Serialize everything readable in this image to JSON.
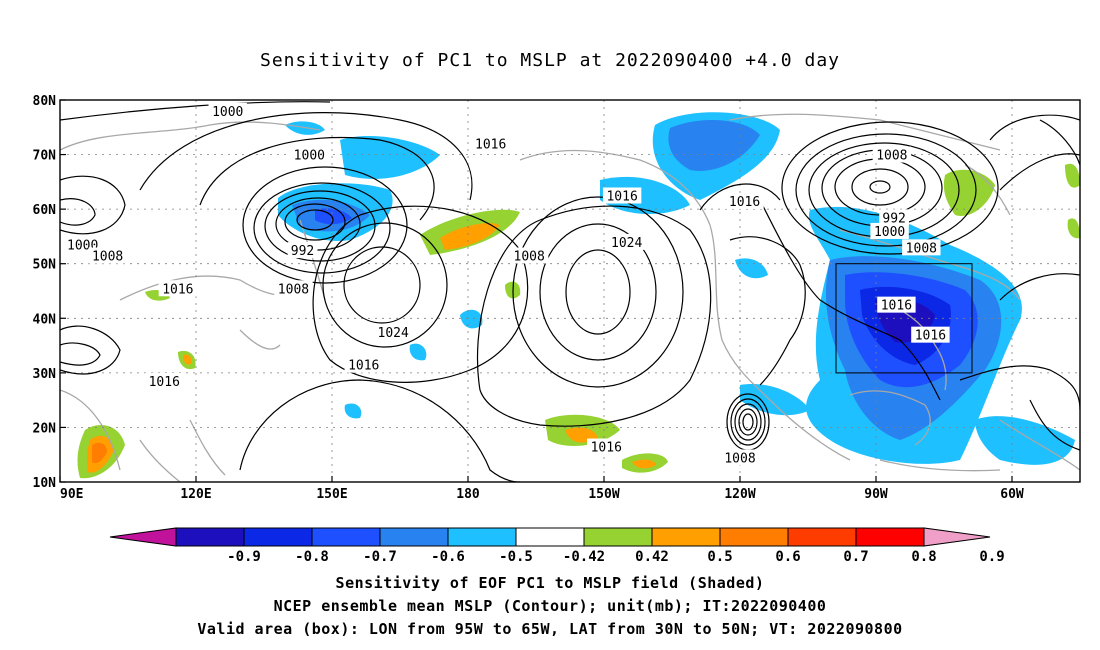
{
  "title": "Sensitivity of PC1 to MSLP at 2022090400 +4.0 day",
  "lat_labels": [
    "80N",
    "70N",
    "60N",
    "50N",
    "40N",
    "30N",
    "20N",
    "10N"
  ],
  "lon_labels": [
    "90E",
    "120E",
    "150E",
    "180",
    "150W",
    "120W",
    "90W",
    "60W"
  ],
  "map_extent": {
    "lon_min": 90,
    "lon_max": 315,
    "lat_min": 10,
    "lat_max": 80
  },
  "valid_box": {
    "lon": [
      265,
      295
    ],
    "lat": [
      30,
      50
    ]
  },
  "contour_labels": [
    {
      "text": "1000",
      "lon": 127,
      "lat": 78
    },
    {
      "text": "1000",
      "lat": 70,
      "lon": 145
    },
    {
      "text": "1016",
      "lat": 72,
      "lon": 185
    },
    {
      "text": "1000",
      "lat": 53.5,
      "lon": 95
    },
    {
      "text": "1008",
      "lat": 51.5,
      "lon": 100.5
    },
    {
      "text": "1016",
      "lat": 45.5,
      "lon": 116
    },
    {
      "text": "992",
      "lat": 52.5,
      "lon": 143.5
    },
    {
      "text": "1008",
      "lat": 45.5,
      "lon": 141.5
    },
    {
      "text": "1024",
      "lat": 37.5,
      "lon": 163.5
    },
    {
      "text": "1008",
      "lat": 51.5,
      "lon": 193.5
    },
    {
      "text": "1016",
      "lat": 62.5,
      "lon": 214
    },
    {
      "text": "1024",
      "lat": 54,
      "lon": 215
    },
    {
      "text": "1016",
      "lat": 31.5,
      "lon": 157
    },
    {
      "text": "1016",
      "lat": 28.5,
      "lon": 113
    },
    {
      "text": "1016",
      "lat": 16.5,
      "lon": 210.5
    },
    {
      "text": "1016",
      "lat": 61.5,
      "lon": 241
    },
    {
      "text": "1008",
      "lat": 70,
      "lon": 273.5
    },
    {
      "text": "992",
      "lat": 58.5,
      "lon": 274
    },
    {
      "text": "1000",
      "lat": 56,
      "lon": 273
    },
    {
      "text": "1008",
      "lat": 53,
      "lon": 280
    },
    {
      "text": "1016",
      "lat": 42.5,
      "lon": 274.5
    },
    {
      "text": "1016",
      "lat": 37,
      "lon": 282
    },
    {
      "text": "1008",
      "lat": 14.5,
      "lon": 240
    }
  ],
  "colorbar": {
    "labels": [
      "-0.9",
      "-0.8",
      "-0.7",
      "-0.6",
      "-0.5",
      "-0.42",
      "0.42",
      "0.5",
      "0.6",
      "0.7",
      "0.8",
      "0.9"
    ],
    "colors": [
      "#c0129a",
      "#1e0fbe",
      "#0a28e6",
      "#1e50ff",
      "#2882f0",
      "#1ec0ff",
      "#ffffff",
      "#96d232",
      "#ffa000",
      "#ff7d00",
      "#ff3c00",
      "#ff0000",
      "#f0a0c8"
    ]
  },
  "captions": [
    "Sensitivity of EOF PC1 to MSLP field (Shaded)",
    "NCEP ensemble mean MSLP (Contour); unit(mb); IT:2022090400",
    "Valid area (box): LON from 95W to 65W, LAT from 30N to 50N; VT: 2022090800"
  ]
}
